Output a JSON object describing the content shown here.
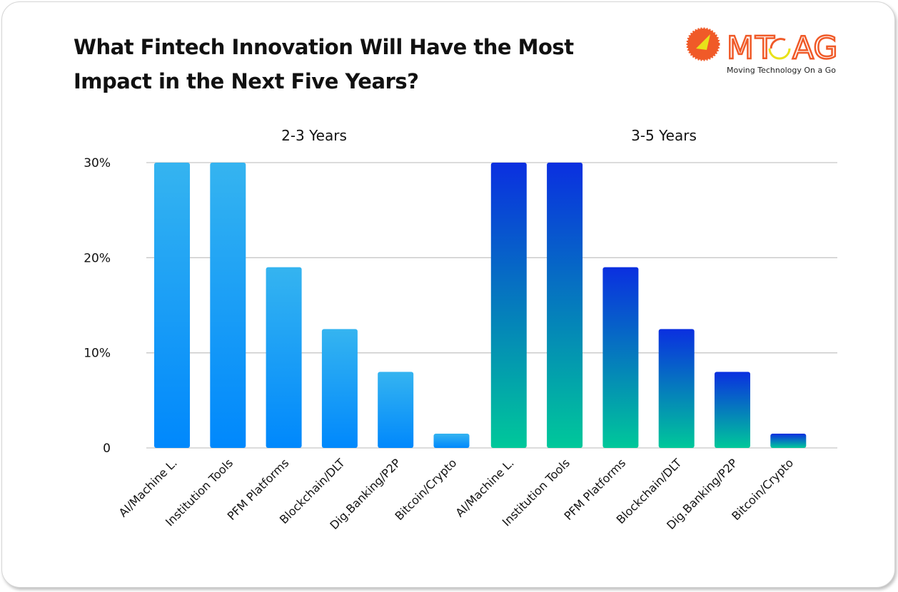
{
  "title": "What Fintech Innovation Will Have the Most Impact in the Next Five Years?",
  "logo": {
    "text": "MTOAG",
    "tagline": "Moving Technology On a Go",
    "colors": {
      "orange": "#f05a28",
      "yellow": "#e8e21a"
    }
  },
  "chart_data": {
    "type": "bar",
    "title": "",
    "xlabel": "",
    "ylabel": "",
    "ylim": [
      0,
      30
    ],
    "yticks": [
      "0",
      "10%",
      "20%",
      "30%"
    ],
    "ytick_values": [
      0,
      10,
      20,
      30
    ],
    "grid": true,
    "categories": [
      "AI/Machine L.",
      "Institution Tools",
      "PFM Platforms",
      "Blockchain/DLT",
      "Dig.Banking/P2P",
      "Bitcoin/Crypto"
    ],
    "panels": [
      {
        "label": "2-3 Years",
        "values": [
          30,
          30,
          19,
          12.5,
          8,
          1.5
        ],
        "colors": [
          "#35b4f0",
          "#0088fc"
        ]
      },
      {
        "label": "3-5 Years",
        "values": [
          30,
          30,
          19,
          12.5,
          8,
          1.5
        ],
        "colors": [
          "#0a2fe0",
          "#00c89a"
        ]
      }
    ]
  }
}
